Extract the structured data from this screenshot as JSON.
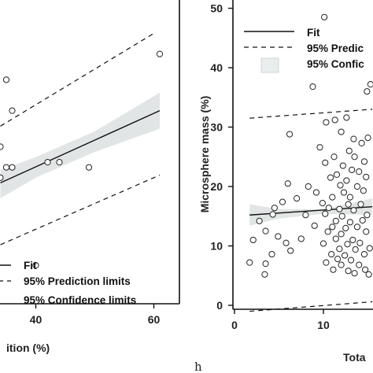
{
  "chart_data": [
    {
      "type": "scatter",
      "xlabel": "ition (%)",
      "ylabel": "",
      "x_ticks": [
        40,
        60
      ],
      "xlim": [
        34,
        62
      ],
      "ylim": [
        0,
        50
      ],
      "points": [
        {
          "x": 61,
          "y": 48
        },
        {
          "x": 35,
          "y": 43
        },
        {
          "x": 36,
          "y": 37
        },
        {
          "x": 34,
          "y": 30
        },
        {
          "x": 35,
          "y": 26
        },
        {
          "x": 36,
          "y": 26
        },
        {
          "x": 34,
          "y": 24
        },
        {
          "x": 44,
          "y": 27
        },
        {
          "x": 42,
          "y": 27
        },
        {
          "x": 49,
          "y": 26
        },
        {
          "x": 40,
          "y": 7
        }
      ],
      "fit": {
        "x": [
          34,
          61
        ],
        "y": [
          23.0,
          37.0
        ]
      },
      "prediction_limits": {
        "upper": {
          "x": [
            34,
            60
          ],
          "y": [
            34.0,
            52.0
          ]
        },
        "lower": {
          "x": [
            34,
            61
          ],
          "y": [
            11.0,
            24.5
          ]
        }
      },
      "confidence_band": {
        "x": [
          34,
          40,
          50,
          61
        ],
        "upper": [
          25.5,
          28.0,
          33.0,
          40.5
        ],
        "lower": [
          20.0,
          24.0,
          29.0,
          33.5
        ]
      },
      "legend": [
        "Fit",
        "95% Prediction limits",
        "95% Confidence limits"
      ],
      "legend_position": "bottom-right"
    },
    {
      "type": "scatter",
      "panel_label": "h",
      "xlabel": "Tota",
      "ylabel": "Microsphere mass (%)",
      "x_ticks": [
        0,
        10
      ],
      "y_ticks": [
        0,
        10,
        20,
        30,
        40,
        50
      ],
      "xlim": [
        0,
        15.5
      ],
      "ylim": [
        0,
        50
      ],
      "fit": {
        "x": [
          1.7,
          15.5
        ],
        "y": [
          15.2,
          16.6
        ]
      },
      "prediction_limits": {
        "upper": {
          "x": [
            1.7,
            15.5
          ],
          "y": [
            31.5,
            33.0
          ]
        },
        "lower": {
          "x": [
            1.7,
            15.5
          ],
          "y": [
            -1.0,
            0.6
          ]
        }
      },
      "confidence_band": {
        "x": [
          1.7,
          5,
          10,
          15.5
        ],
        "upper": [
          17.0,
          16.2,
          16.2,
          18.0
        ],
        "lower": [
          13.4,
          14.6,
          15.4,
          15.2
        ]
      },
      "points": [
        {
          "x": 10.1,
          "y": 48.5
        },
        {
          "x": 8.8,
          "y": 36.8
        },
        {
          "x": 15.3,
          "y": 37.2
        },
        {
          "x": 14.9,
          "y": 36.0
        },
        {
          "x": 6.2,
          "y": 28.8
        },
        {
          "x": 10.3,
          "y": 30.8
        },
        {
          "x": 11.3,
          "y": 31.2
        },
        {
          "x": 12.6,
          "y": 31.6
        },
        {
          "x": 12.0,
          "y": 29.2
        },
        {
          "x": 13.4,
          "y": 28.0
        },
        {
          "x": 14.3,
          "y": 27.3
        },
        {
          "x": 15.0,
          "y": 28.2
        },
        {
          "x": 9.6,
          "y": 26.6
        },
        {
          "x": 12.9,
          "y": 26.0
        },
        {
          "x": 11.2,
          "y": 25.0
        },
        {
          "x": 13.5,
          "y": 25.0
        },
        {
          "x": 10.2,
          "y": 24.0
        },
        {
          "x": 14.6,
          "y": 24.2
        },
        {
          "x": 12.2,
          "y": 23.5
        },
        {
          "x": 13.2,
          "y": 22.8
        },
        {
          "x": 14.0,
          "y": 22.5
        },
        {
          "x": 11.5,
          "y": 22.0
        },
        {
          "x": 10.8,
          "y": 21.5
        },
        {
          "x": 12.6,
          "y": 21.0
        },
        {
          "x": 14.8,
          "y": 21.6
        },
        {
          "x": 6.0,
          "y": 20.5
        },
        {
          "x": 8.3,
          "y": 20.0
        },
        {
          "x": 11.9,
          "y": 20.2
        },
        {
          "x": 13.8,
          "y": 20.0
        },
        {
          "x": 9.2,
          "y": 19.0
        },
        {
          "x": 12.3,
          "y": 19.0
        },
        {
          "x": 14.5,
          "y": 19.3
        },
        {
          "x": 7.0,
          "y": 18.0
        },
        {
          "x": 11.0,
          "y": 18.2
        },
        {
          "x": 13.0,
          "y": 18.2
        },
        {
          "x": 5.4,
          "y": 17.4
        },
        {
          "x": 9.9,
          "y": 17.2
        },
        {
          "x": 12.8,
          "y": 17.0
        },
        {
          "x": 14.2,
          "y": 17.0
        },
        {
          "x": 4.5,
          "y": 16.4
        },
        {
          "x": 10.6,
          "y": 16.4
        },
        {
          "x": 11.8,
          "y": 16.2
        },
        {
          "x": 13.4,
          "y": 16.0
        },
        {
          "x": 4.3,
          "y": 15.3
        },
        {
          "x": 8.0,
          "y": 15.2
        },
        {
          "x": 10.2,
          "y": 15.4
        },
        {
          "x": 12.1,
          "y": 15.0
        },
        {
          "x": 14.9,
          "y": 15.2
        },
        {
          "x": 2.8,
          "y": 14.2
        },
        {
          "x": 11.4,
          "y": 14.2
        },
        {
          "x": 13.0,
          "y": 14.0
        },
        {
          "x": 14.4,
          "y": 14.3
        },
        {
          "x": 9.0,
          "y": 13.4
        },
        {
          "x": 11.0,
          "y": 13.2
        },
        {
          "x": 12.5,
          "y": 13.0
        },
        {
          "x": 13.8,
          "y": 13.2
        },
        {
          "x": 3.5,
          "y": 12.5
        },
        {
          "x": 10.5,
          "y": 12.4
        },
        {
          "x": 12.0,
          "y": 12.0
        },
        {
          "x": 14.8,
          "y": 12.4
        },
        {
          "x": 4.9,
          "y": 11.6
        },
        {
          "x": 7.5,
          "y": 11.2
        },
        {
          "x": 11.4,
          "y": 11.2
        },
        {
          "x": 13.3,
          "y": 11.0
        },
        {
          "x": 2.1,
          "y": 11.0
        },
        {
          "x": 5.8,
          "y": 10.5
        },
        {
          "x": 10.0,
          "y": 10.4
        },
        {
          "x": 12.7,
          "y": 10.3
        },
        {
          "x": 14.1,
          "y": 10.5
        },
        {
          "x": 11.8,
          "y": 9.5
        },
        {
          "x": 13.6,
          "y": 9.4
        },
        {
          "x": 15.2,
          "y": 9.6
        },
        {
          "x": 6.3,
          "y": 9.2
        },
        {
          "x": 4.2,
          "y": 8.6
        },
        {
          "x": 10.9,
          "y": 8.6
        },
        {
          "x": 12.4,
          "y": 8.4
        },
        {
          "x": 14.6,
          "y": 8.6
        },
        {
          "x": 11.6,
          "y": 7.8
        },
        {
          "x": 13.1,
          "y": 7.6
        },
        {
          "x": 1.7,
          "y": 7.2
        },
        {
          "x": 3.5,
          "y": 7.0
        },
        {
          "x": 10.3,
          "y": 7.2
        },
        {
          "x": 12.0,
          "y": 6.8
        },
        {
          "x": 14.0,
          "y": 6.8
        },
        {
          "x": 11.1,
          "y": 6.0
        },
        {
          "x": 12.8,
          "y": 5.8
        },
        {
          "x": 14.7,
          "y": 6.0
        },
        {
          "x": 13.5,
          "y": 5.4
        },
        {
          "x": 3.4,
          "y": 5.2
        },
        {
          "x": 15.1,
          "y": 5.2
        }
      ],
      "legend": [
        "Fit",
        "95% Predic",
        "95% Confic"
      ],
      "legend_position": "top-right"
    }
  ]
}
